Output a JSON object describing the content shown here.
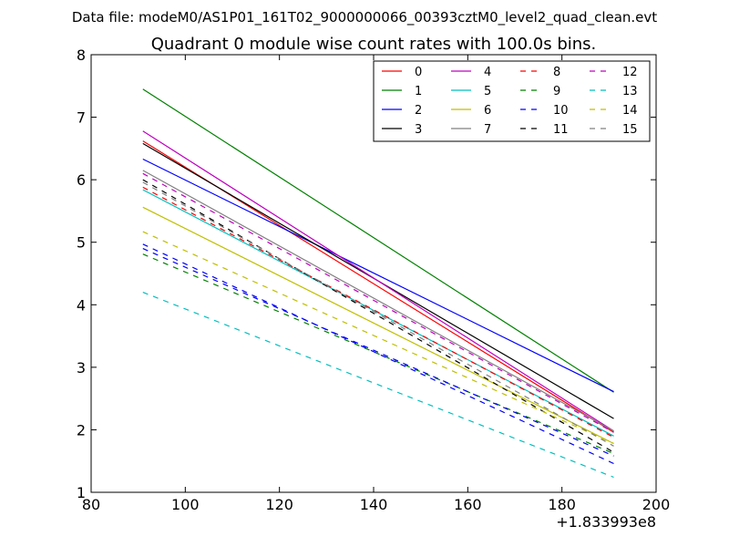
{
  "chart_data": {
    "type": "line",
    "suptitle": "Data file: modeM0/AS1P01_161T02_9000000066_00393cztM0_level2_quad_clean.evt",
    "title": "Quadrant 0 module wise count rates with 100.0s bins.",
    "xlabel": "",
    "ylabel": "",
    "x_offset_label": "+1.833993e8",
    "xlim": [
      80,
      200
    ],
    "ylim": [
      1,
      8
    ],
    "xticks": [
      80,
      100,
      120,
      140,
      160,
      180,
      200
    ],
    "yticks": [
      1,
      2,
      3,
      4,
      5,
      6,
      7,
      8
    ],
    "grid": false,
    "legend_position": "top-right",
    "legend_columns": 4,
    "series": [
      {
        "name": "0",
        "color": "#ff0000",
        "dash": "solid",
        "x": [
          91,
          191
        ],
        "y": [
          6.62,
          1.96
        ]
      },
      {
        "name": "1",
        "color": "#008000",
        "dash": "solid",
        "x": [
          91,
          191
        ],
        "y": [
          7.45,
          2.6
        ]
      },
      {
        "name": "2",
        "color": "#0000ff",
        "dash": "solid",
        "x": [
          91,
          191
        ],
        "y": [
          6.33,
          2.61
        ]
      },
      {
        "name": "3",
        "color": "#000000",
        "dash": "solid",
        "x": [
          91,
          191
        ],
        "y": [
          6.58,
          2.18
        ]
      },
      {
        "name": "4",
        "color": "#bf00bf",
        "dash": "solid",
        "x": [
          91,
          191
        ],
        "y": [
          6.78,
          1.98
        ]
      },
      {
        "name": "5",
        "color": "#00bfbf",
        "dash": "solid",
        "x": [
          91,
          191
        ],
        "y": [
          5.84,
          1.9
        ]
      },
      {
        "name": "6",
        "color": "#bfbf00",
        "dash": "solid",
        "x": [
          91,
          191
        ],
        "y": [
          5.56,
          1.78
        ]
      },
      {
        "name": "7",
        "color": "#808080",
        "dash": "solid",
        "x": [
          91,
          191
        ],
        "y": [
          6.15,
          1.98
        ]
      },
      {
        "name": "8",
        "color": "#ff0000",
        "dash": "dashed",
        "x": [
          91,
          191
        ],
        "y": [
          5.88,
          1.88
        ]
      },
      {
        "name": "9",
        "color": "#008000",
        "dash": "dashed",
        "x": [
          91,
          191
        ],
        "y": [
          4.81,
          1.62
        ]
      },
      {
        "name": "10",
        "color": "#0000ff",
        "dash": "dashed",
        "x": [
          91,
          191
        ],
        "y": [
          4.97,
          1.46
        ]
      },
      {
        "name": "11",
        "color": "#000000",
        "dash": "dashed",
        "x": [
          91,
          191
        ],
        "y": [
          6.0,
          1.64
        ]
      },
      {
        "name": "12",
        "color": "#bf00bf",
        "dash": "dashed",
        "x": [
          91,
          191
        ],
        "y": [
          6.1,
          1.96
        ]
      },
      {
        "name": "13",
        "color": "#00bfbf",
        "dash": "dashed",
        "x": [
          91,
          191
        ],
        "y": [
          4.2,
          1.24
        ]
      },
      {
        "name": "14",
        "color": "#bfbf00",
        "dash": "dashed",
        "x": [
          91,
          191
        ],
        "y": [
          5.17,
          1.78
        ]
      },
      {
        "name": "15",
        "color": "#808080",
        "dash": "dashed",
        "x": [
          91,
          191
        ],
        "y": [
          5.96,
          1.74
        ]
      },
      {
        "name": "",
        "color": "#0000ff",
        "dash": "dashed",
        "x": [
          91,
          191
        ],
        "y": [
          4.9,
          1.58
        ]
      }
    ]
  }
}
